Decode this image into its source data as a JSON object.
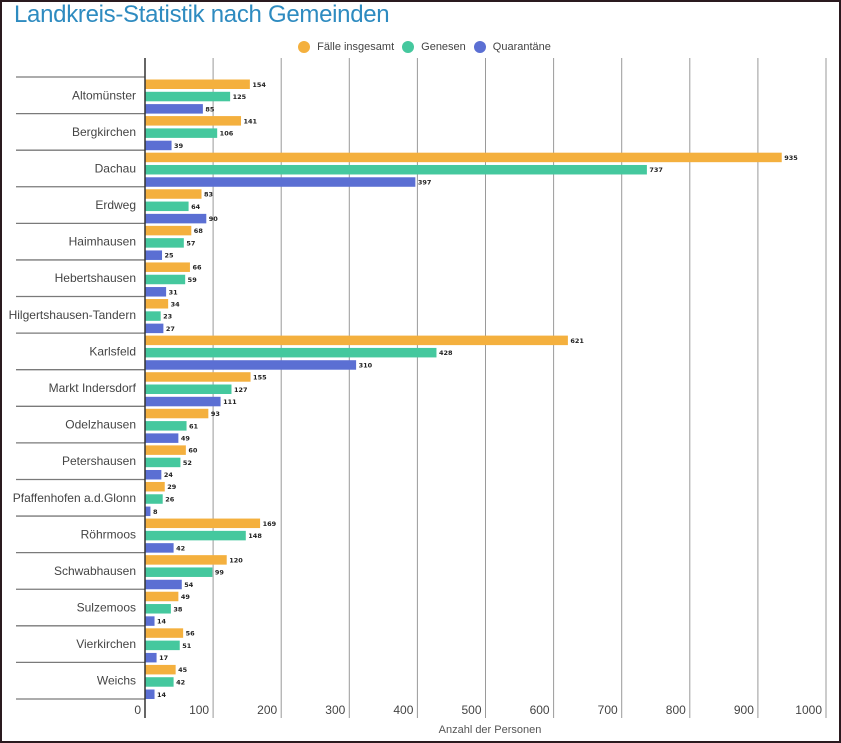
{
  "chart_data": {
    "type": "bar",
    "orientation": "horizontal",
    "title": "Landkreis-Statistik nach Gemeinden",
    "xlabel": "Anzahl der Personen",
    "ylabel": "",
    "xlim": [
      0,
      1000
    ],
    "xticks": [
      0,
      100,
      200,
      300,
      400,
      500,
      600,
      700,
      800,
      900,
      1000
    ],
    "grid": true,
    "legend_position": "top-center",
    "categories": [
      "Altomünster",
      "Bergkirchen",
      "Dachau",
      "Erdweg",
      "Haimhausen",
      "Hebertshausen",
      "Hilgertshausen-Tandern",
      "Karlsfeld",
      "Markt Indersdorf",
      "Odelzhausen",
      "Petershausen",
      "Pfaffenhofen a.d.Glonn",
      "Röhrmoos",
      "Schwabhausen",
      "Sulzemoos",
      "Vierkirchen",
      "Weichs"
    ],
    "series": [
      {
        "name": "Fälle insgesamt",
        "color": "#f4b03e",
        "values": [
          154,
          141,
          935,
          83,
          68,
          66,
          34,
          621,
          155,
          93,
          60,
          29,
          169,
          120,
          49,
          56,
          45
        ]
      },
      {
        "name": "Genesen",
        "color": "#45c89e",
        "values": [
          125,
          106,
          737,
          64,
          57,
          59,
          23,
          428,
          127,
          61,
          52,
          26,
          148,
          99,
          38,
          51,
          42
        ]
      },
      {
        "name": "Quarantäne",
        "color": "#5b6fd3",
        "values": [
          85,
          39,
          397,
          90,
          25,
          31,
          27,
          310,
          111,
          49,
          24,
          8,
          42,
          54,
          14,
          17,
          14
        ]
      }
    ]
  }
}
